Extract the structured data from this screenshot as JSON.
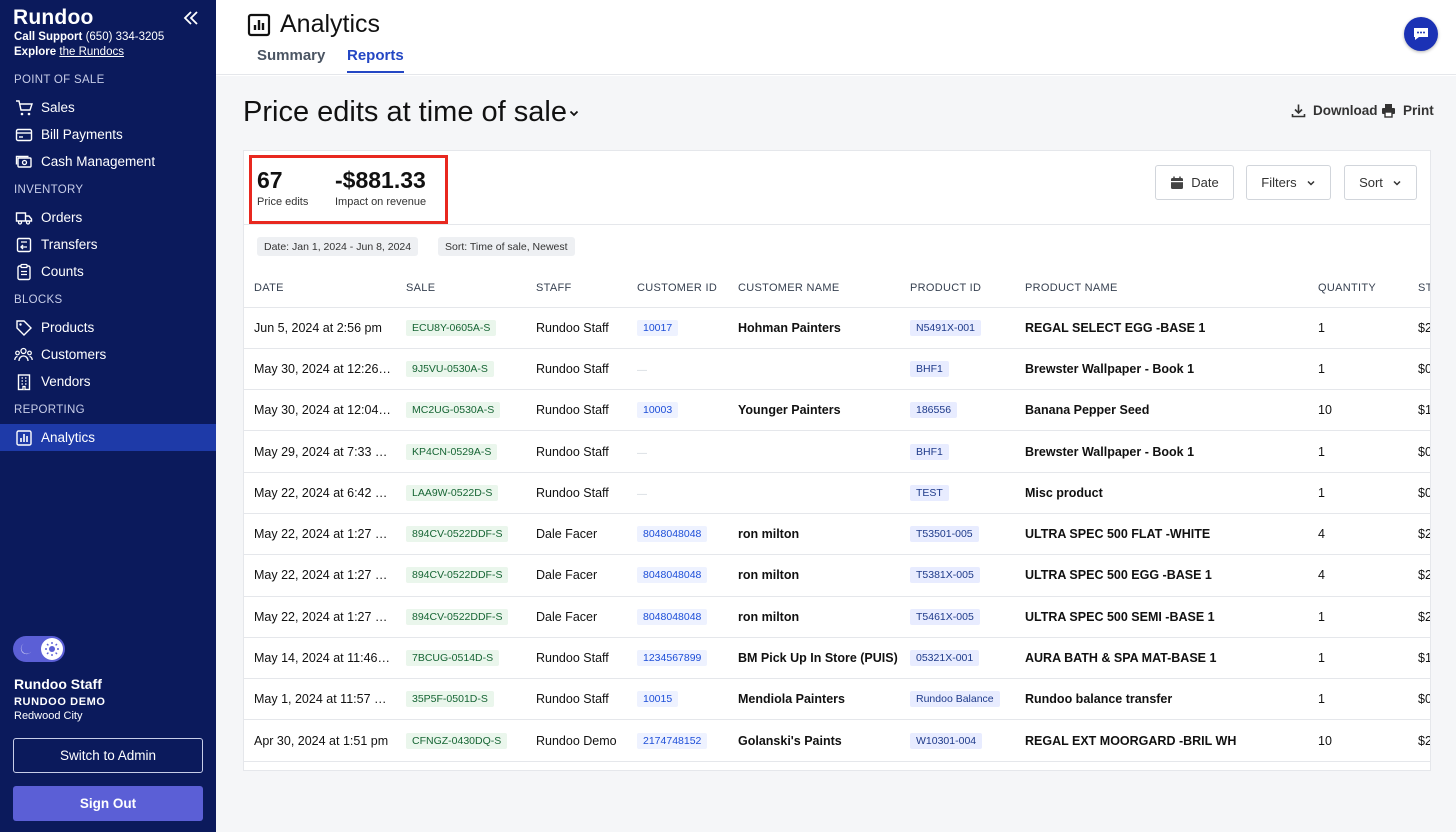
{
  "sidebar": {
    "logo": "Rundoo",
    "support_label": "Call Support",
    "support_phone": "(650) 334-3205",
    "explore_label": "Explore",
    "explore_link": "the Rundocs",
    "sections": [
      "POINT OF SALE",
      "INVENTORY",
      "BLOCKS",
      "REPORTING"
    ],
    "items": {
      "sales": "Sales",
      "bill_payments": "Bill Payments",
      "cash_management": "Cash Management",
      "orders": "Orders",
      "transfers": "Transfers",
      "counts": "Counts",
      "products": "Products",
      "customers": "Customers",
      "vendors": "Vendors",
      "analytics": "Analytics"
    },
    "user": {
      "name": "Rundoo Staff",
      "org": "RUNDOO DEMO",
      "city": "Redwood City"
    },
    "switch_admin": "Switch to Admin",
    "sign_out": "Sign Out"
  },
  "header": {
    "title": "Analytics",
    "tabs": [
      {
        "label": "Summary"
      },
      {
        "label": "Reports"
      }
    ]
  },
  "report": {
    "title": "Price edits at time of sale",
    "download": "Download",
    "print": "Print",
    "stats": {
      "edits_value": "67",
      "edits_label": "Price edits",
      "impact_value": "-$881.33",
      "impact_label": "Impact on revenue"
    },
    "controls": {
      "date": "Date",
      "filters": "Filters",
      "sort": "Sort"
    },
    "chips": {
      "date": "Date: Jan 1, 2024 - Jun 8, 2024",
      "sort": "Sort: Time of sale, Newest"
    },
    "columns": [
      "DATE",
      "SALE",
      "STAFF",
      "CUSTOMER ID",
      "CUSTOMER NAME",
      "PRODUCT ID",
      "PRODUCT NAME",
      "QUANTITY",
      "ST"
    ],
    "rows": [
      {
        "date": "Jun 5, 2024 at 2:56 pm",
        "sale": "ECU8Y-0605A-S",
        "staff": "Rundoo Staff",
        "cust_id": "10017",
        "cust_name": "Hohman Painters",
        "prod_id": "N5491X-001",
        "prod_name": "REGAL SELECT EGG -BASE 1",
        "qty": "1",
        "st": "$2"
      },
      {
        "date": "May 30, 2024 at 12:26…",
        "sale": "9J5VU-0530A-S",
        "staff": "Rundoo Staff",
        "cust_id": "",
        "cust_name": "",
        "prod_id": "BHF1",
        "prod_name": "Brewster Wallpaper - Book 1",
        "qty": "1",
        "st": "$0"
      },
      {
        "date": "May 30, 2024 at 12:04…",
        "sale": "MC2UG-0530A-S",
        "staff": "Rundoo Staff",
        "cust_id": "10003",
        "cust_name": "Younger Painters",
        "prod_id": "186556",
        "prod_name": "Banana Pepper Seed",
        "qty": "10",
        "st": "$1"
      },
      {
        "date": "May 29, 2024 at 7:33 …",
        "sale": "KP4CN-0529A-S",
        "staff": "Rundoo Staff",
        "cust_id": "",
        "cust_name": "",
        "prod_id": "BHF1",
        "prod_name": "Brewster Wallpaper - Book 1",
        "qty": "1",
        "st": "$0"
      },
      {
        "date": "May 22, 2024 at 6:42 …",
        "sale": "LAA9W-0522D-S",
        "staff": "Rundoo Staff",
        "cust_id": "",
        "cust_name": "",
        "prod_id": "TEST",
        "prod_name": "Misc product",
        "qty": "1",
        "st": "$0"
      },
      {
        "date": "May 22, 2024 at 1:27 …",
        "sale": "894CV-0522DDF-S",
        "staff": "Dale Facer",
        "cust_id": "8048048048",
        "cust_name": "ron milton",
        "prod_id": "T53501-005",
        "prod_name": "ULTRA SPEC 500 FLAT -WHITE",
        "qty": "4",
        "st": "$2"
      },
      {
        "date": "May 22, 2024 at 1:27 …",
        "sale": "894CV-0522DDF-S",
        "staff": "Dale Facer",
        "cust_id": "8048048048",
        "cust_name": "ron milton",
        "prod_id": "T5381X-005",
        "prod_name": "ULTRA SPEC 500 EGG -BASE 1",
        "qty": "4",
        "st": "$2"
      },
      {
        "date": "May 22, 2024 at 1:27 …",
        "sale": "894CV-0522DDF-S",
        "staff": "Dale Facer",
        "cust_id": "8048048048",
        "cust_name": "ron milton",
        "prod_id": "T5461X-005",
        "prod_name": "ULTRA SPEC 500 SEMI -BASE 1",
        "qty": "1",
        "st": "$2"
      },
      {
        "date": "May 14, 2024 at 11:46…",
        "sale": "7BCUG-0514D-S",
        "staff": "Rundoo Staff",
        "cust_id": "1234567899",
        "cust_name": "BM Pick Up In Store (PUIS)",
        "prod_id": "05321X-001",
        "prod_name": "AURA BATH & SPA MAT-BASE 1",
        "qty": "1",
        "st": "$1"
      },
      {
        "date": "May 1, 2024 at 11:57 …",
        "sale": "35P5F-0501D-S",
        "staff": "Rundoo Staff",
        "cust_id": "10015",
        "cust_name": "Mendiola Painters",
        "prod_id": "Rundoo Balance",
        "prod_name": "Rundoo balance transfer",
        "qty": "1",
        "st": "$0"
      },
      {
        "date": "Apr 30, 2024 at 1:51 pm",
        "sale": "CFNGZ-0430DQ-S",
        "staff": "Rundoo Demo",
        "cust_id": "2174748152",
        "cust_name": "Golanski's Paints",
        "prod_id": "W10301-004",
        "prod_name": "REGAL EXT MOORGARD -BRIL WH",
        "qty": "10",
        "st": "$2"
      }
    ]
  }
}
